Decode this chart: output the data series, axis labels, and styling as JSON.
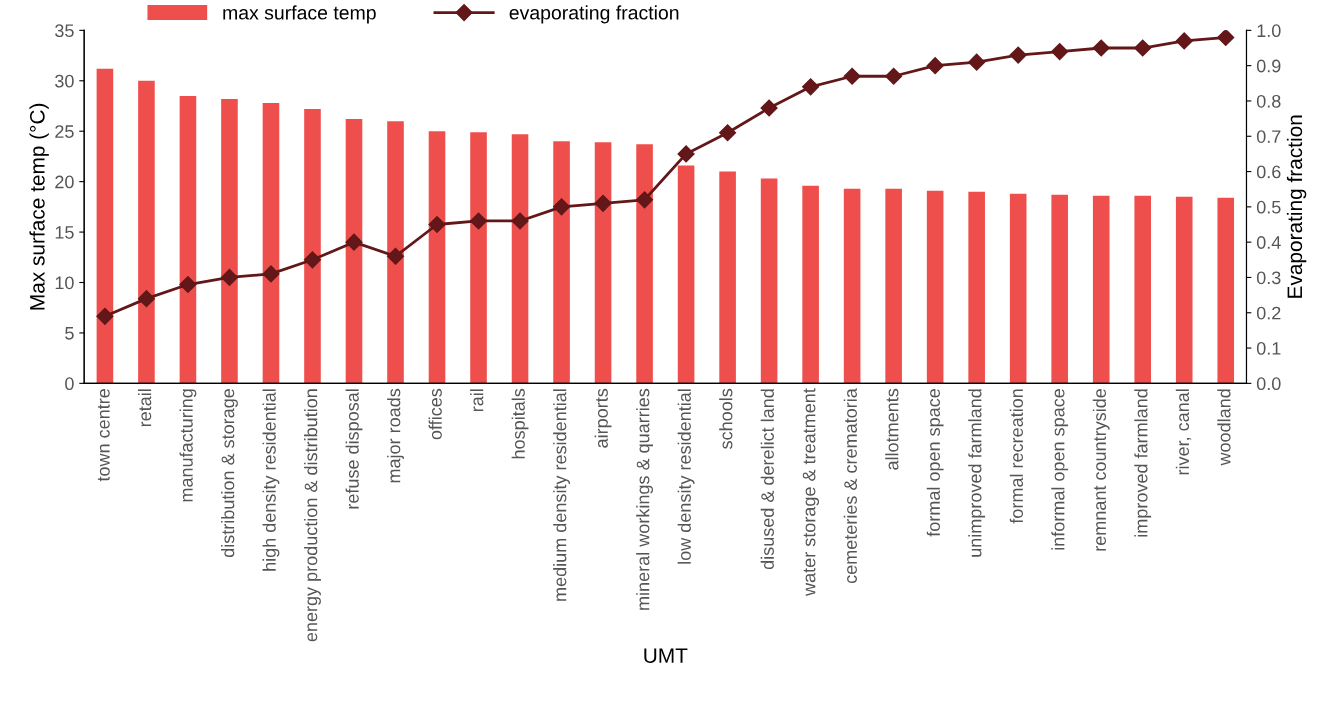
{
  "chart_data": {
    "type": "bar",
    "xlabel": "UMT",
    "ylabel": "Max surface temp (°C)",
    "y2label": "Evaporating fraction",
    "categories": [
      "town centre",
      "retail",
      "manufacturing",
      "distribution & storage",
      "high density residential",
      "energy production & distribution",
      "refuse disposal",
      "major roads",
      "offices",
      "rail",
      "hospitals",
      "medium density residential",
      "airports",
      "mineral workings & quarries",
      "low density residential",
      "schools",
      "disused & derelict land",
      "water storage & treatment",
      "cemeteries & crematoria",
      "allotments",
      "formal open space",
      "unimproved farmland",
      "formal recreation",
      "informal open space",
      "remnant countryside",
      "improved farmland",
      "river, canal",
      "woodland"
    ],
    "series": [
      {
        "name": "max surface temp",
        "color": "#ef4f4c",
        "values": [
          31.2,
          30.0,
          28.5,
          28.2,
          27.8,
          27.2,
          26.2,
          26.0,
          25.0,
          24.9,
          24.7,
          24.0,
          23.9,
          23.7,
          21.6,
          21.0,
          20.3,
          19.6,
          19.3,
          19.3,
          19.1,
          19.0,
          18.8,
          18.7,
          18.6,
          18.6,
          18.5,
          18.4
        ]
      },
      {
        "name": "evaporating fraction",
        "type": "line",
        "axis": "y2",
        "color": "#631719",
        "marker": "diamond",
        "values": [
          0.19,
          0.24,
          0.28,
          0.3,
          0.31,
          0.35,
          0.4,
          0.36,
          0.45,
          0.46,
          0.46,
          0.5,
          0.51,
          0.52,
          0.65,
          0.71,
          0.78,
          0.84,
          0.87,
          0.87,
          0.9,
          0.91,
          0.93,
          0.94,
          0.95,
          0.95,
          0.97,
          0.98
        ]
      }
    ],
    "ylim": [
      0,
      35
    ],
    "yticks": [
      0,
      5,
      10,
      15,
      20,
      25,
      30,
      35
    ],
    "y2lim": [
      0,
      1
    ],
    "y2ticks": [
      {
        "value": 0,
        "label": "0.0"
      },
      {
        "value": 0.1,
        "label": "0.1"
      },
      {
        "value": 0.2,
        "label": "0.2"
      },
      {
        "value": 0.3,
        "label": "0.3"
      },
      {
        "value": 0.4,
        "label": "0.4"
      },
      {
        "value": 0.5,
        "label": "0.5"
      },
      {
        "value": 0.6,
        "label": "0.6"
      },
      {
        "value": 0.7,
        "label": "0.7"
      },
      {
        "value": 0.8,
        "label": "0.8"
      },
      {
        "value": 0.9,
        "label": "0.9"
      },
      {
        "value": 1,
        "label": "1.0"
      }
    ],
    "legend": "top left",
    "grid": false
  }
}
